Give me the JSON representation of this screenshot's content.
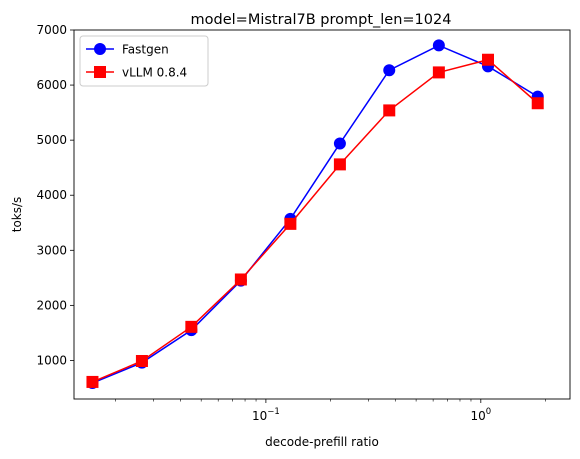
{
  "chart_data": {
    "type": "line",
    "title": "model=Mistral7B prompt_len=1024",
    "xlabel": "decode-prefill ratio",
    "ylabel": "toks/s",
    "xscale": "log",
    "xlim": [
      0.0128,
      2.6
    ],
    "ylim": [
      300,
      7000
    ],
    "grid": false,
    "legend_position": "top-left",
    "x": [
      0.0156,
      0.0265,
      0.045,
      0.0765,
      0.13,
      0.221,
      0.375,
      0.638,
      1.08,
      1.84
    ],
    "series": [
      {
        "name": "Fastgen",
        "color": "#0000ff",
        "marker": "circle",
        "values": [
          590,
          960,
          1550,
          2450,
          3570,
          4940,
          6270,
          6720,
          6340,
          5790
        ]
      },
      {
        "name": "vLLM 0.8.4",
        "color": "#ff0000",
        "marker": "square",
        "values": [
          610,
          990,
          1610,
          2470,
          3480,
          4560,
          5540,
          6230,
          6460,
          5670
        ]
      }
    ],
    "yticks": [
      {
        "value": 1000,
        "label": "1000"
      },
      {
        "value": 2000,
        "label": "2000"
      },
      {
        "value": 3000,
        "label": "3000"
      },
      {
        "value": 4000,
        "label": "4000"
      },
      {
        "value": 5000,
        "label": "5000"
      },
      {
        "value": 6000,
        "label": "6000"
      },
      {
        "value": 7000,
        "label": "7000"
      }
    ],
    "xticks_major": [
      {
        "value": 0.1,
        "base": "10",
        "exp": "−1"
      },
      {
        "value": 1,
        "base": "10",
        "exp": "0"
      }
    ],
    "xticks_minor": [
      0.02,
      0.03,
      0.04,
      0.05,
      0.06,
      0.07,
      0.08,
      0.09,
      0.2,
      0.3,
      0.4,
      0.5,
      0.6,
      0.7,
      0.8,
      0.9,
      2
    ]
  }
}
